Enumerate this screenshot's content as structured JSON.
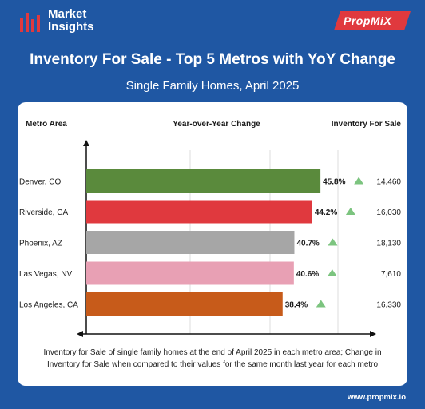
{
  "header": {
    "logo_text": "Market\nInsights",
    "brand": "PropMiX",
    "title": "Inventory For Sale - Top 5 Metros with YoY Change",
    "subtitle": "Single Family Homes, April 2025"
  },
  "chart_data": {
    "type": "bar",
    "orientation": "horizontal",
    "columns": [
      "Metro Area",
      "Year-over-Year Change",
      "Inventory For Sale"
    ],
    "categories": [
      "Denver, CO",
      "Riverside, CA",
      "Phoenix, AZ",
      "Las Vegas, NV",
      "Los Angeles, CA"
    ],
    "values": [
      45.8,
      44.2,
      40.7,
      40.6,
      38.4
    ],
    "value_labels": [
      "45.8%",
      "44.2%",
      "40.7%",
      "40.6%",
      "38.4%"
    ],
    "inventory": [
      "14,460",
      "16,030",
      "18,130",
      "7,610",
      "16,330"
    ],
    "colors": [
      "#5a8a3c",
      "#e0393e",
      "#a6a6a6",
      "#e8a0b4",
      "#c75b1a"
    ],
    "trend": "up",
    "trend_color": "#7cc47f",
    "grid": true,
    "caption": "Inventory for Sale of single family homes at the end of April 2025 in each metro area; Change in Inventory for Sale when compared to their values for the same month last year for each metro"
  },
  "footer": {
    "url": "www.propmix.io"
  }
}
